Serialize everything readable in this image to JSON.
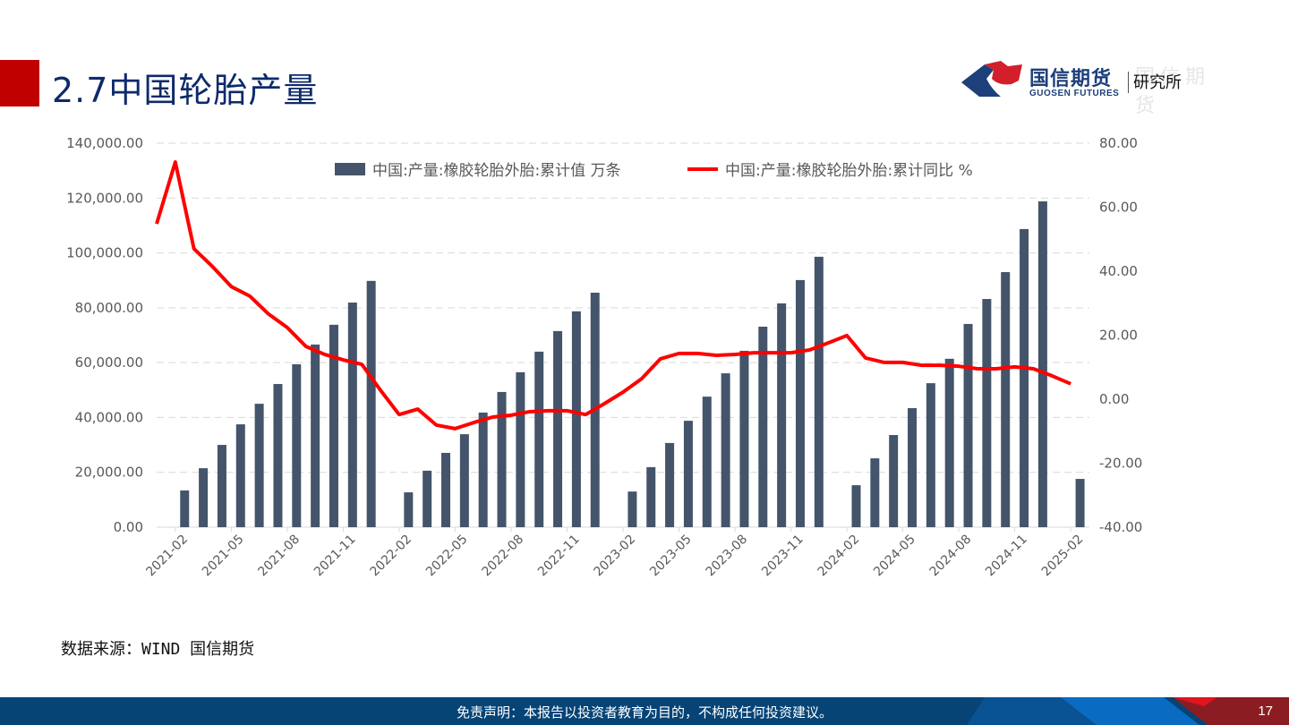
{
  "header": {
    "title": "2.7中国轮胎产量",
    "accent_color": "#c00000",
    "logo": {
      "name_cn": "国信期货",
      "name_en": "GUOSEN FUTURES",
      "subtitle": "研究所",
      "ghost_text": "国信期货"
    }
  },
  "source": "数据来源：WIND  国信期货",
  "footer": {
    "disclaimer": "免责声明：本报告以投资者教育为目的，不构成任何投资建议。",
    "page_number": "17"
  },
  "legend": {
    "bar_label": "中国:产量:橡胶轮胎外胎:累计值 万条",
    "line_label": "中国:产量:橡胶轮胎外胎:累计同比 %"
  },
  "axes": {
    "left_ticks": [
      "140,000.00",
      "120,000.00",
      "100,000.00",
      "80,000.00",
      "60,000.00",
      "40,000.00",
      "20,000.00",
      "0.00"
    ],
    "right_ticks": [
      "80.00",
      "60.00",
      "40.00",
      "20.00",
      "0.00",
      "-20.00",
      "-40.00"
    ],
    "x_ticks": [
      "2021-02",
      "2021-05",
      "2021-08",
      "2021-11",
      "2022-02",
      "2022-05",
      "2022-08",
      "2022-11",
      "2023-02",
      "2023-05",
      "2023-08",
      "2023-11",
      "2024-02",
      "2024-05",
      "2024-08",
      "2024-11",
      "2025-02"
    ]
  },
  "chart_data": {
    "type": "bar",
    "title": "",
    "xlabel": "",
    "ylabel": "万条",
    "y2label": "%",
    "ylim": [
      0,
      140000
    ],
    "y2lim": [
      -40,
      80
    ],
    "grid": true,
    "legend_position": "top",
    "colors": {
      "bar": "#44546a",
      "line": "#ff0000"
    },
    "categories": [
      "2021-01",
      "2021-02",
      "2021-03",
      "2021-04",
      "2021-05",
      "2021-06",
      "2021-07",
      "2021-08",
      "2021-09",
      "2021-10",
      "2021-11",
      "2021-12",
      "2022-01",
      "2022-02",
      "2022-03",
      "2022-04",
      "2022-05",
      "2022-06",
      "2022-07",
      "2022-08",
      "2022-09",
      "2022-10",
      "2022-11",
      "2022-12",
      "2023-01",
      "2023-02",
      "2023-03",
      "2023-04",
      "2023-05",
      "2023-06",
      "2023-07",
      "2023-08",
      "2023-09",
      "2023-10",
      "2023-11",
      "2023-12",
      "2024-01",
      "2024-02",
      "2024-03",
      "2024-04",
      "2024-05",
      "2024-06",
      "2024-07",
      "2024-08",
      "2024-09",
      "2024-10",
      "2024-11",
      "2024-12",
      "2025-01",
      "2025-02"
    ],
    "series": [
      {
        "name": "中国:产量:橡胶轮胎外胎:累计值 万条",
        "type": "bar",
        "axis": "left",
        "values": [
          null,
          13400,
          21500,
          30000,
          37500,
          45000,
          52200,
          59400,
          66600,
          73800,
          81900,
          89800,
          null,
          12700,
          20600,
          27100,
          33900,
          41800,
          49300,
          56500,
          64000,
          71500,
          78700,
          85500,
          null,
          13000,
          21900,
          30700,
          38800,
          47600,
          56100,
          64300,
          73100,
          81600,
          90100,
          98600,
          null,
          15300,
          25100,
          33600,
          43400,
          52500,
          61400,
          74100,
          83200,
          93000,
          108700,
          118800,
          null,
          17600
        ]
      },
      {
        "name": "中国:产量:橡胶轮胎外胎:累计同比 %",
        "type": "line",
        "axis": "right",
        "values": [
          54.8,
          74.1,
          47.0,
          41.4,
          35.2,
          32.2,
          26.6,
          22.4,
          16.5,
          14.0,
          12.3,
          10.9,
          2.8,
          -4.8,
          -3.1,
          -8.1,
          -9.2,
          -7.3,
          -5.6,
          -5.0,
          -3.9,
          -3.6,
          -3.6,
          -4.8,
          -1.4,
          2.2,
          6.4,
          12.6,
          14.3,
          14.3,
          13.7,
          14.0,
          14.5,
          14.5,
          14.5,
          15.4,
          17.6,
          19.9,
          12.9,
          11.5,
          11.5,
          10.6,
          10.6,
          10.3,
          9.5,
          9.5,
          10.1,
          9.5,
          7.3,
          4.8
        ]
      }
    ]
  }
}
